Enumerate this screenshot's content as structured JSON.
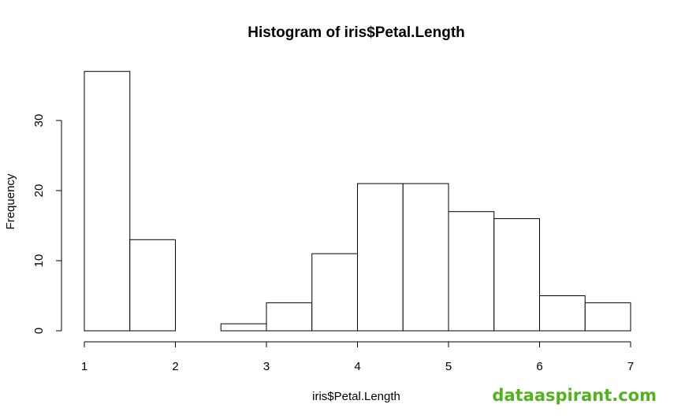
{
  "chart_data": {
    "type": "bar",
    "title": "Histogram of iris$Petal.Length",
    "xlabel": "iris$Petal.Length",
    "ylabel": "Frequency",
    "bins": [
      {
        "x0": 1.0,
        "x1": 1.5,
        "count": 37
      },
      {
        "x0": 1.5,
        "x1": 2.0,
        "count": 13
      },
      {
        "x0": 2.0,
        "x1": 2.5,
        "count": 0
      },
      {
        "x0": 2.5,
        "x1": 3.0,
        "count": 1
      },
      {
        "x0": 3.0,
        "x1": 3.5,
        "count": 4
      },
      {
        "x0": 3.5,
        "x1": 4.0,
        "count": 11
      },
      {
        "x0": 4.0,
        "x1": 4.5,
        "count": 21
      },
      {
        "x0": 4.5,
        "x1": 5.0,
        "count": 21
      },
      {
        "x0": 5.0,
        "x1": 5.5,
        "count": 17
      },
      {
        "x0": 5.5,
        "x1": 6.0,
        "count": 16
      },
      {
        "x0": 6.0,
        "x1": 6.5,
        "count": 5
      },
      {
        "x0": 6.5,
        "x1": 7.0,
        "count": 4
      }
    ],
    "xticks": [
      "1",
      "2",
      "3",
      "4",
      "5",
      "6",
      "7"
    ],
    "yticks": [
      "0",
      "10",
      "20",
      "30"
    ],
    "xlim": [
      1,
      7
    ],
    "ylim": [
      0,
      37
    ],
    "grid": false,
    "bar_fill": "#ffffff",
    "bar_stroke": "#000000"
  },
  "watermark": {
    "text": "dataaspirant.com",
    "color": "#52b21e"
  }
}
